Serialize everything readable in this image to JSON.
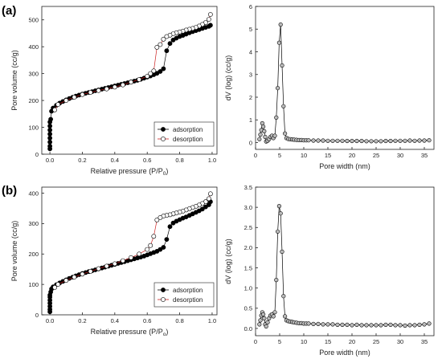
{
  "panels": [
    {
      "label": "(a)"
    },
    {
      "label": "(b)"
    }
  ],
  "colors": {
    "adsorption": "#000000",
    "desorption": "#cc2222",
    "axis": "#222222"
  },
  "chart_data": [
    {
      "type": "scatter",
      "panel": "(a)",
      "xlabel": "Relative pressure (P/P",
      "xlabel_sub": "0",
      "xlabel_end": ")",
      "ylabel": "Pore volume (cc/g)",
      "xlim": [
        -0.05,
        1.03
      ],
      "ylim": [
        0,
        550
      ],
      "xticks": [
        0.0,
        0.2,
        0.4,
        0.6,
        0.8,
        1.0
      ],
      "xtick_labels": [
        "0.0",
        "0.2",
        "0.4",
        "0.6",
        "0.8",
        "1.0"
      ],
      "yticks": [
        0,
        100,
        200,
        300,
        400,
        500
      ],
      "ytick_labels": [
        "0",
        "100",
        "200",
        "300",
        "400",
        "500"
      ],
      "legend": "bottom-right",
      "series": [
        {
          "name": "adsorption",
          "marker": "filled",
          "x": [
            0.0,
            0.0,
            0.0,
            0.0,
            0.0,
            0.0,
            0.0,
            0.0,
            0.005,
            0.01,
            0.02,
            0.04,
            0.06,
            0.08,
            0.1,
            0.12,
            0.14,
            0.16,
            0.18,
            0.2,
            0.22,
            0.24,
            0.26,
            0.28,
            0.3,
            0.32,
            0.34,
            0.36,
            0.38,
            0.4,
            0.42,
            0.44,
            0.46,
            0.48,
            0.5,
            0.52,
            0.54,
            0.56,
            0.58,
            0.6,
            0.62,
            0.64,
            0.66,
            0.68,
            0.7,
            0.72,
            0.74,
            0.76,
            0.78,
            0.8,
            0.82,
            0.84,
            0.86,
            0.88,
            0.9,
            0.92,
            0.94,
            0.96,
            0.98,
            0.99
          ],
          "y": [
            20,
            30,
            45,
            60,
            75,
            90,
            105,
            120,
            130,
            160,
            172,
            182,
            190,
            196,
            202,
            207,
            212,
            216,
            220,
            224,
            227,
            230,
            233,
            236,
            239,
            242,
            245,
            248,
            251,
            254,
            257,
            260,
            263,
            266,
            269,
            272,
            275,
            279,
            283,
            287,
            291,
            296,
            301,
            308,
            318,
            385,
            412,
            425,
            432,
            438,
            442,
            447,
            452,
            456,
            460,
            464,
            468,
            472,
            476,
            480
          ]
        },
        {
          "name": "desorption",
          "marker": "open",
          "x": [
            0.99,
            0.98,
            0.96,
            0.94,
            0.92,
            0.9,
            0.88,
            0.86,
            0.84,
            0.82,
            0.8,
            0.78,
            0.76,
            0.74,
            0.72,
            0.7,
            0.68,
            0.66,
            0.64,
            0.62,
            0.6,
            0.55,
            0.5,
            0.45,
            0.4,
            0.35,
            0.3,
            0.25,
            0.2,
            0.15,
            0.1,
            0.05,
            0.03
          ],
          "y": [
            520,
            502,
            490,
            483,
            477,
            472,
            468,
            465,
            462,
            458,
            455,
            452,
            448,
            443,
            438,
            428,
            408,
            398,
            310,
            300,
            290,
            278,
            268,
            258,
            250,
            243,
            237,
            230,
            222,
            212,
            200,
            185,
            165
          ]
        }
      ]
    },
    {
      "type": "scatter",
      "panel": "(a)",
      "xlabel": "Pore width (nm)",
      "ylabel": "dV (log) (cc/g)",
      "xlim": [
        0,
        37
      ],
      "ylim": [
        -0.3,
        6
      ],
      "xticks": [
        0,
        5,
        10,
        15,
        20,
        25,
        30,
        35
      ],
      "xtick_labels": [
        "0",
        "5",
        "10",
        "15",
        "20",
        "25",
        "30",
        "35"
      ],
      "yticks": [
        0,
        1,
        2,
        3,
        4,
        5,
        6
      ],
      "ytick_labels": [
        "0",
        "1",
        "2",
        "3",
        "4",
        "5",
        "6"
      ],
      "series": [
        {
          "marker": "open-shaded",
          "x": [
            0.8,
            1.0,
            1.2,
            1.4,
            1.6,
            1.8,
            2.0,
            2.2,
            2.5,
            2.8,
            3.1,
            3.4,
            3.7,
            4.0,
            4.3,
            4.6,
            4.9,
            5.2,
            5.5,
            5.8,
            6.1,
            6.4,
            6.8,
            7.2,
            7.6,
            8.0,
            8.5,
            9.0,
            9.5,
            10.0,
            10.5,
            11.0,
            12.0,
            13.0,
            14.0,
            15.0,
            16.0,
            17.0,
            18.0,
            19.0,
            20.0,
            21.0,
            22.0,
            23.0,
            24.0,
            25.0,
            26.0,
            27.0,
            28.0,
            29.0,
            30.0,
            31.0,
            32.0,
            33.0,
            34.0,
            35.0,
            36.0
          ],
          "y": [
            0.15,
            0.35,
            0.55,
            0.85,
            0.7,
            0.5,
            0.25,
            0.05,
            0.08,
            0.15,
            0.25,
            0.3,
            0.2,
            0.3,
            1.1,
            2.4,
            4.4,
            5.2,
            3.4,
            1.6,
            0.4,
            0.2,
            0.16,
            0.15,
            0.14,
            0.13,
            0.12,
            0.11,
            0.11,
            0.1,
            0.1,
            0.1,
            0.09,
            0.09,
            0.09,
            0.08,
            0.08,
            0.08,
            0.08,
            0.07,
            0.07,
            0.07,
            0.07,
            0.06,
            0.06,
            0.06,
            0.06,
            0.07,
            0.07,
            0.08,
            0.08,
            0.08,
            0.09,
            0.08,
            0.09,
            0.09,
            0.1
          ]
        }
      ]
    },
    {
      "type": "scatter",
      "panel": "(b)",
      "xlabel": "Relative pressure (P/P",
      "xlabel_sub": "o",
      "xlabel_end": ")",
      "ylabel": "Pore volume (cc/g)",
      "xlim": [
        -0.05,
        1.03
      ],
      "ylim": [
        0,
        420
      ],
      "xticks": [
        0.0,
        0.2,
        0.4,
        0.6,
        0.8,
        1.0
      ],
      "xtick_labels": [
        "0.0",
        "0.2",
        "0.4",
        "0.6",
        "0.8",
        "1.0"
      ],
      "yticks": [
        0,
        100,
        200,
        300,
        400
      ],
      "ytick_labels": [
        "0",
        "100",
        "200",
        "300",
        "400"
      ],
      "legend": "bottom-right",
      "series": [
        {
          "name": "adsorption",
          "marker": "filled",
          "x": [
            0.0,
            0.0,
            0.0,
            0.0,
            0.0,
            0.0,
            0.0,
            0.005,
            0.01,
            0.02,
            0.04,
            0.06,
            0.08,
            0.1,
            0.12,
            0.14,
            0.16,
            0.18,
            0.2,
            0.22,
            0.24,
            0.26,
            0.28,
            0.3,
            0.32,
            0.34,
            0.36,
            0.38,
            0.4,
            0.42,
            0.44,
            0.46,
            0.48,
            0.5,
            0.52,
            0.54,
            0.56,
            0.58,
            0.6,
            0.62,
            0.64,
            0.66,
            0.68,
            0.7,
            0.72,
            0.74,
            0.76,
            0.78,
            0.8,
            0.82,
            0.84,
            0.86,
            0.88,
            0.9,
            0.92,
            0.94,
            0.96,
            0.98,
            0.99
          ],
          "y": [
            10,
            18,
            28,
            38,
            48,
            58,
            65,
            75,
            85,
            92,
            99,
            105,
            110,
            115,
            120,
            124,
            128,
            132,
            136,
            139,
            142,
            145,
            148,
            151,
            154,
            157,
            160,
            163,
            166,
            169,
            172,
            175,
            178,
            181,
            184,
            187,
            190,
            193,
            197,
            201,
            205,
            209,
            215,
            222,
            248,
            290,
            302,
            308,
            313,
            318,
            322,
            327,
            332,
            337,
            342,
            348,
            355,
            362,
            372
          ]
        },
        {
          "name": "desorption",
          "marker": "open",
          "x": [
            0.99,
            0.98,
            0.96,
            0.94,
            0.92,
            0.9,
            0.88,
            0.86,
            0.84,
            0.82,
            0.8,
            0.78,
            0.76,
            0.74,
            0.72,
            0.7,
            0.68,
            0.66,
            0.64,
            0.62,
            0.6,
            0.55,
            0.5,
            0.45,
            0.4,
            0.35,
            0.3,
            0.25,
            0.2,
            0.15,
            0.1,
            0.05,
            0.03
          ],
          "y": [
            398,
            382,
            372,
            366,
            361,
            357,
            353,
            349,
            345,
            341,
            338,
            335,
            332,
            329,
            327,
            325,
            320,
            312,
            258,
            228,
            215,
            200,
            188,
            178,
            168,
            160,
            152,
            143,
            134,
            124,
            113,
            100,
            90
          ]
        }
      ]
    },
    {
      "type": "scatter",
      "panel": "(b)",
      "xlabel": "Pore width (nm)",
      "ylabel": "dV (log) (cc/g)",
      "xlim": [
        0,
        37
      ],
      "ylim": [
        -0.18,
        3.5
      ],
      "xticks": [
        0,
        5,
        10,
        15,
        20,
        25,
        30,
        35
      ],
      "xtick_labels": [
        "0",
        "5",
        "10",
        "15",
        "20",
        "25",
        "30",
        "35"
      ],
      "yticks": [
        0.0,
        0.5,
        1.0,
        1.5,
        2.0,
        2.5,
        3.0,
        3.5
      ],
      "ytick_labels": [
        "0.0",
        "0.5",
        "1.0",
        "1.5",
        "2.0",
        "2.5",
        "3.0",
        "3.5"
      ],
      "series": [
        {
          "marker": "open-shaded",
          "x": [
            0.8,
            1.0,
            1.2,
            1.4,
            1.6,
            1.8,
            2.0,
            2.2,
            2.5,
            2.8,
            3.1,
            3.4,
            3.7,
            4.0,
            4.3,
            4.6,
            4.9,
            5.2,
            5.5,
            5.8,
            6.1,
            6.4,
            6.8,
            7.2,
            7.6,
            8.0,
            8.5,
            9.0,
            9.5,
            10.0,
            10.5,
            11.0,
            12.0,
            13.0,
            14.0,
            15.0,
            16.0,
            17.0,
            18.0,
            19.0,
            20.0,
            21.0,
            22.0,
            23.0,
            24.0,
            25.0,
            26.0,
            27.0,
            28.0,
            29.0,
            30.0,
            31.0,
            32.0,
            33.0,
            34.0,
            35.0,
            36.0
          ],
          "y": [
            0.1,
            0.2,
            0.32,
            0.4,
            0.35,
            0.25,
            0.1,
            0.05,
            0.15,
            0.25,
            0.32,
            0.35,
            0.3,
            0.4,
            1.2,
            2.4,
            3.03,
            2.85,
            1.9,
            0.8,
            0.3,
            0.2,
            0.18,
            0.17,
            0.16,
            0.15,
            0.14,
            0.13,
            0.13,
            0.12,
            0.12,
            0.12,
            0.11,
            0.11,
            0.1,
            0.1,
            0.1,
            0.09,
            0.09,
            0.09,
            0.08,
            0.09,
            0.08,
            0.08,
            0.08,
            0.08,
            0.08,
            0.09,
            0.09,
            0.08,
            0.08,
            0.07,
            0.08,
            0.08,
            0.09,
            0.1,
            0.12
          ]
        }
      ]
    }
  ]
}
